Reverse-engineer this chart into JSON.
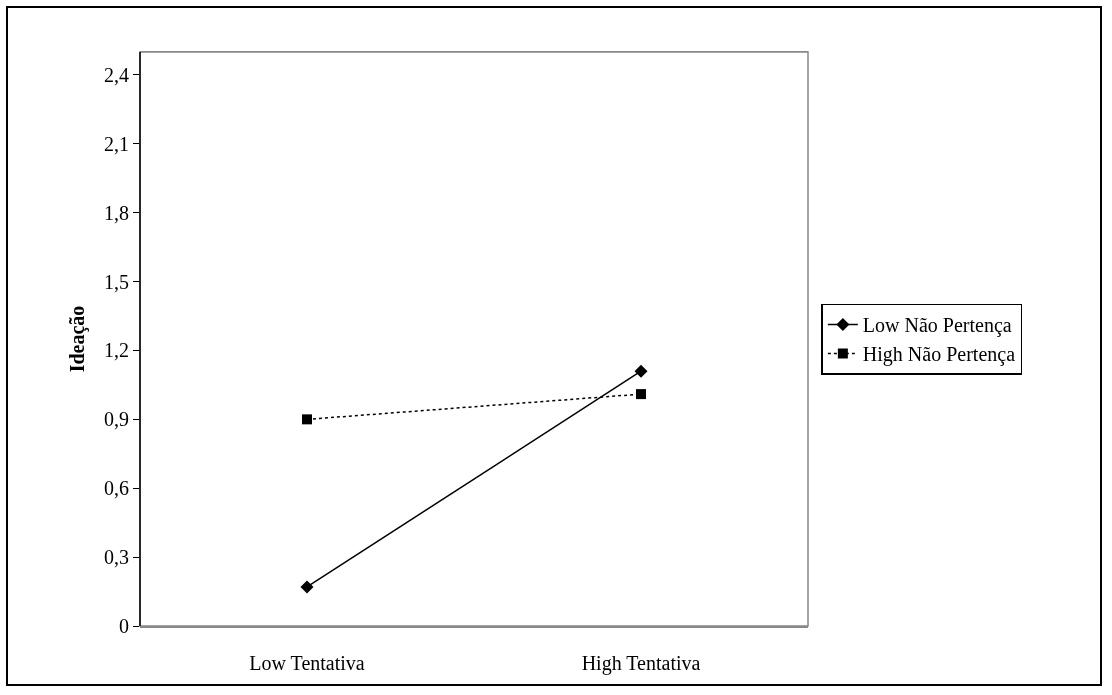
{
  "chart_data": {
    "type": "line",
    "ylabel": "Ideação",
    "categories": [
      "Low Tentativa",
      "High Tentativa"
    ],
    "series": [
      {
        "name": "Low Não Pertença",
        "color": "#000000",
        "values": [
          0.17,
          1.11
        ],
        "marker": "diamond",
        "line_style": "solid"
      },
      {
        "name": "High Não Pertença",
        "color": "#000000",
        "values": [
          0.9,
          1.01
        ],
        "marker": "square",
        "line_style": "dotted"
      }
    ],
    "ylim": [
      0,
      2.5
    ],
    "yticks": [
      {
        "value": 0,
        "label": "0"
      },
      {
        "value": 0.3,
        "label": "0,3"
      },
      {
        "value": 0.6,
        "label": "0,6"
      },
      {
        "value": 0.9,
        "label": "0,9"
      },
      {
        "value": 1.2,
        "label": "1,2"
      },
      {
        "value": 1.5,
        "label": "1,5"
      },
      {
        "value": 1.8,
        "label": "1,8"
      },
      {
        "value": 2.1,
        "label": "2,1"
      },
      {
        "value": 2.4,
        "label": "2,4"
      }
    ],
    "grid": false,
    "legend": "right"
  }
}
